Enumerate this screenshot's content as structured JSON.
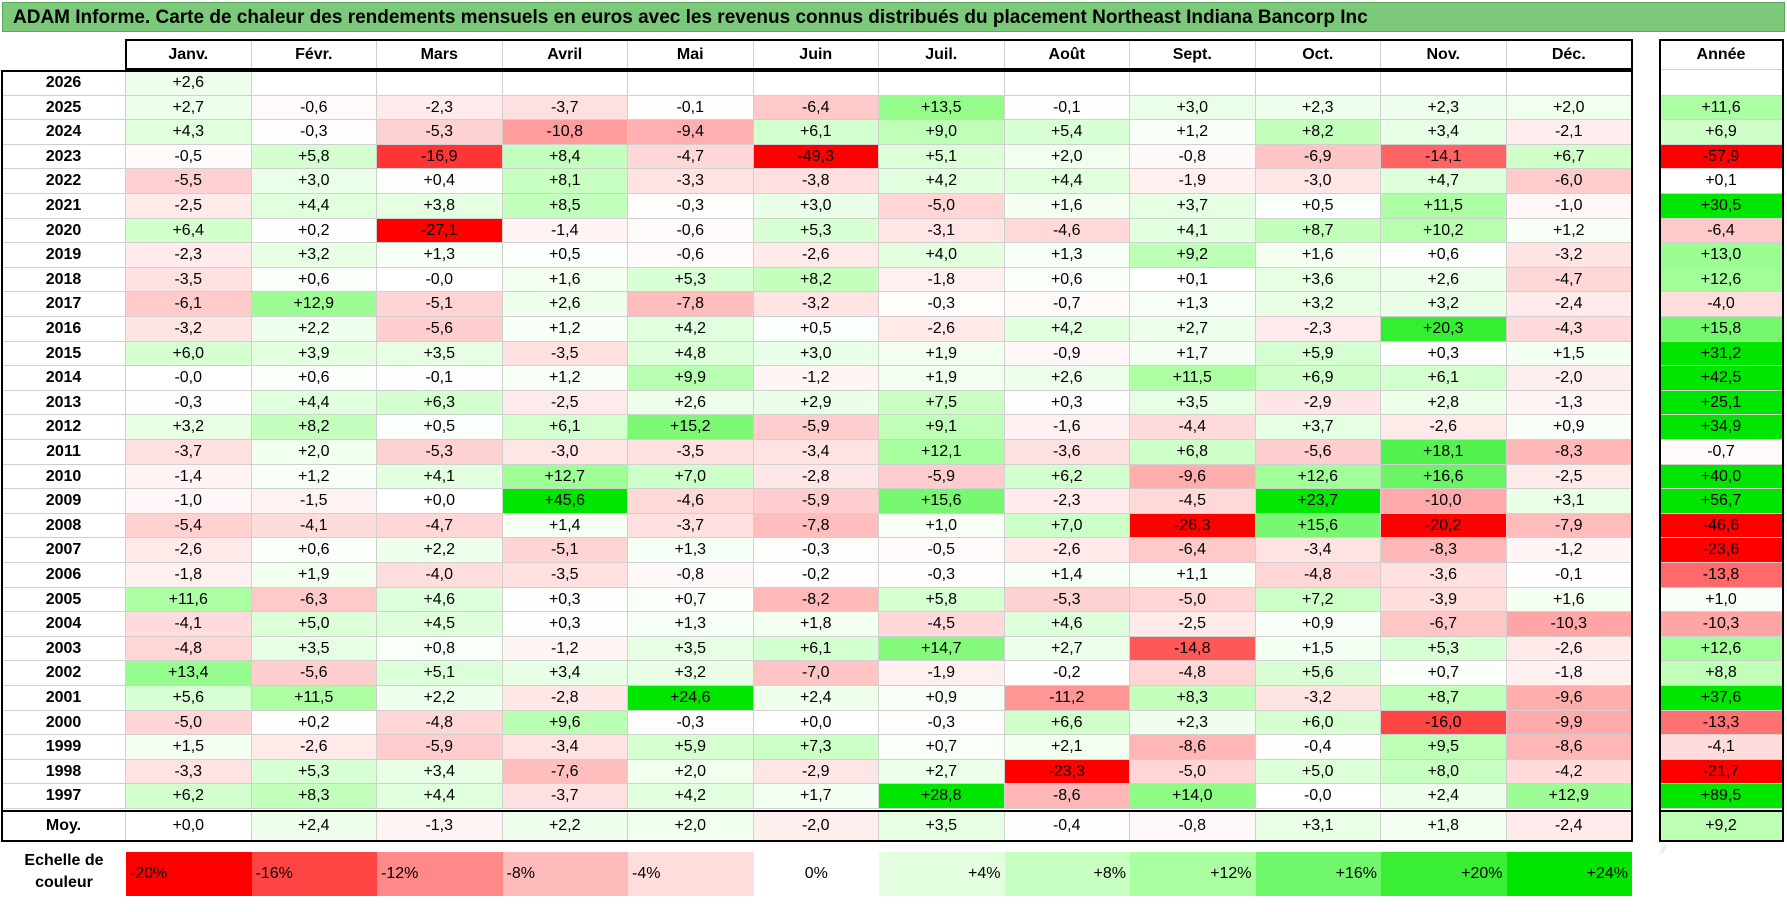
{
  "title": "ADAM Informe. Carte de chaleur des rendements mensuels en euros avec les revenus connus distribués du placement Northeast Indiana Bancorp Inc",
  "chart_data": {
    "type": "heatmap",
    "title": "ADAM Informe. Carte de chaleur des rendements mensuels en euros avec les revenus connus distribués du placement Northeast Indiana Bancorp Inc",
    "columns": [
      "Janv.",
      "Févr.",
      "Mars",
      "Avril",
      "Mai",
      "Juin",
      "Juil.",
      "Août",
      "Sept.",
      "Oct.",
      "Nov.",
      "Déc."
    ],
    "year_header": "Année",
    "rows": [
      {
        "year": "2026",
        "values": [
          2.6,
          null,
          null,
          null,
          null,
          null,
          null,
          null,
          null,
          null,
          null,
          null
        ],
        "annual": null
      },
      {
        "year": "2025",
        "values": [
          2.7,
          -0.6,
          -2.3,
          -3.7,
          -0.1,
          -6.4,
          13.5,
          -0.1,
          3.0,
          2.3,
          2.3,
          2.0
        ],
        "annual": 11.6
      },
      {
        "year": "2024",
        "values": [
          4.3,
          -0.3,
          -5.3,
          -10.8,
          -9.4,
          6.1,
          9.0,
          5.4,
          1.2,
          8.2,
          3.4,
          -2.1
        ],
        "annual": 6.9
      },
      {
        "year": "2023",
        "values": [
          -0.5,
          5.8,
          -16.9,
          8.4,
          -4.7,
          -49.3,
          5.1,
          2.0,
          -0.8,
          -6.9,
          -14.1,
          6.7
        ],
        "annual": -57.9
      },
      {
        "year": "2022",
        "values": [
          -5.5,
          3.0,
          0.4,
          8.1,
          -3.3,
          -3.8,
          4.2,
          4.4,
          -1.9,
          -3.0,
          4.7,
          -6.0
        ],
        "annual": 0.1
      },
      {
        "year": "2021",
        "values": [
          -2.5,
          4.4,
          3.8,
          8.5,
          -0.3,
          3.0,
          -5.0,
          1.6,
          3.7,
          0.5,
          11.5,
          -1.0
        ],
        "annual": 30.5
      },
      {
        "year": "2020",
        "values": [
          6.4,
          0.2,
          -27.1,
          -1.4,
          -0.6,
          5.3,
          -3.1,
          -4.6,
          4.1,
          8.7,
          10.2,
          1.2
        ],
        "annual": -6.4
      },
      {
        "year": "2019",
        "values": [
          -2.3,
          3.2,
          1.3,
          0.5,
          -0.6,
          -2.6,
          4.0,
          1.3,
          9.2,
          1.6,
          0.6,
          -3.2
        ],
        "annual": 13.0
      },
      {
        "year": "2018",
        "values": [
          -3.5,
          0.6,
          -0.0,
          1.6,
          5.3,
          8.2,
          -1.8,
          0.6,
          0.1,
          3.6,
          2.6,
          -4.7
        ],
        "annual": 12.6
      },
      {
        "year": "2017",
        "values": [
          -6.1,
          12.9,
          -5.1,
          2.6,
          -7.8,
          -3.2,
          -0.3,
          -0.7,
          1.3,
          3.2,
          3.2,
          -2.4
        ],
        "annual": -4.0
      },
      {
        "year": "2016",
        "values": [
          -3.2,
          2.2,
          -5.6,
          1.2,
          4.2,
          0.5,
          -2.6,
          4.2,
          2.7,
          -2.3,
          20.3,
          -4.3
        ],
        "annual": 15.8
      },
      {
        "year": "2015",
        "values": [
          6.0,
          3.9,
          3.5,
          -3.5,
          4.8,
          3.0,
          1.9,
          -0.9,
          1.7,
          5.9,
          0.3,
          1.5
        ],
        "annual": 31.2
      },
      {
        "year": "2014",
        "values": [
          -0.0,
          0.6,
          -0.1,
          1.2,
          9.9,
          -1.2,
          1.9,
          2.6,
          11.5,
          6.9,
          6.1,
          -2.0
        ],
        "annual": 42.5
      },
      {
        "year": "2013",
        "values": [
          -0.3,
          4.4,
          6.3,
          -2.5,
          2.6,
          2.9,
          7.5,
          0.3,
          3.5,
          -2.9,
          2.8,
          -1.3
        ],
        "annual": 25.1
      },
      {
        "year": "2012",
        "values": [
          3.2,
          8.2,
          0.5,
          6.1,
          15.2,
          -5.9,
          9.1,
          -1.6,
          -4.4,
          3.7,
          -2.6,
          0.9
        ],
        "annual": 34.9
      },
      {
        "year": "2011",
        "values": [
          -3.7,
          2.0,
          -5.3,
          -3.0,
          -3.5,
          -3.4,
          12.1,
          -3.6,
          6.8,
          -5.6,
          18.1,
          -8.3
        ],
        "annual": -0.7
      },
      {
        "year": "2010",
        "values": [
          -1.4,
          1.2,
          4.1,
          12.7,
          7.0,
          -2.8,
          -5.9,
          6.2,
          -9.6,
          12.6,
          16.6,
          -2.5
        ],
        "annual": 40.0
      },
      {
        "year": "2009",
        "values": [
          -1.0,
          -1.5,
          0.0,
          45.6,
          -4.6,
          -5.9,
          15.6,
          -2.3,
          -4.5,
          23.7,
          -10.0,
          3.1
        ],
        "annual": 56.7
      },
      {
        "year": "2008",
        "values": [
          -5.4,
          -4.1,
          -4.7,
          1.4,
          -3.7,
          -7.8,
          1.0,
          7.0,
          -26.3,
          15.6,
          -20.2,
          -7.9
        ],
        "annual": -46.6
      },
      {
        "year": "2007",
        "values": [
          -2.6,
          0.6,
          2.2,
          -5.1,
          1.3,
          -0.3,
          -0.5,
          -2.6,
          -6.4,
          -3.4,
          -8.3,
          -1.2
        ],
        "annual": -23.6
      },
      {
        "year": "2006",
        "values": [
          -1.8,
          1.9,
          -4.0,
          -3.5,
          -0.8,
          -0.2,
          -0.3,
          1.4,
          1.1,
          -4.8,
          -3.6,
          -0.1
        ],
        "annual": -13.8
      },
      {
        "year": "2005",
        "values": [
          11.6,
          -6.3,
          4.6,
          0.3,
          0.7,
          -8.2,
          5.8,
          -5.3,
          -5.0,
          7.2,
          -3.9,
          1.6
        ],
        "annual": 1.0
      },
      {
        "year": "2004",
        "values": [
          -4.1,
          5.0,
          4.5,
          0.3,
          1.3,
          1.8,
          -4.5,
          4.6,
          -2.5,
          0.9,
          -6.7,
          -10.3
        ],
        "annual": -10.3
      },
      {
        "year": "2003",
        "values": [
          -4.8,
          3.5,
          0.8,
          -1.2,
          3.5,
          6.1,
          14.7,
          2.7,
          -14.8,
          1.5,
          5.3,
          -2.6
        ],
        "annual": 12.6
      },
      {
        "year": "2002",
        "values": [
          13.4,
          -5.6,
          5.1,
          3.4,
          3.2,
          -7.0,
          -1.9,
          -0.2,
          -4.8,
          5.6,
          0.7,
          -1.8
        ],
        "annual": 8.8
      },
      {
        "year": "2001",
        "values": [
          5.6,
          11.5,
          2.2,
          -2.8,
          24.6,
          2.4,
          0.9,
          -11.2,
          8.3,
          -3.2,
          8.7,
          -9.6
        ],
        "annual": 37.6
      },
      {
        "year": "2000",
        "values": [
          -5.0,
          0.2,
          -4.8,
          9.6,
          -0.3,
          0.0,
          -0.3,
          6.6,
          2.3,
          6.0,
          -16.0,
          -9.9
        ],
        "annual": -13.3
      },
      {
        "year": "1999",
        "values": [
          1.5,
          -2.6,
          -5.9,
          -3.4,
          5.9,
          7.3,
          0.7,
          2.1,
          -8.6,
          -0.4,
          9.5,
          -8.6
        ],
        "annual": -4.1
      },
      {
        "year": "1998",
        "values": [
          -3.3,
          5.3,
          3.4,
          -7.6,
          2.0,
          -2.9,
          2.7,
          -23.3,
          -5.0,
          5.0,
          8.0,
          -4.2
        ],
        "annual": -21.7
      },
      {
        "year": "1997",
        "values": [
          6.2,
          8.3,
          4.4,
          -3.7,
          4.2,
          1.7,
          28.8,
          -8.6,
          14.0,
          -0.0,
          2.4,
          12.9
        ],
        "annual": 89.5
      }
    ],
    "average": {
      "label": "Moy.",
      "values": [
        0.0,
        2.4,
        -1.3,
        2.2,
        2.0,
        -2.0,
        3.5,
        -0.4,
        -0.8,
        3.1,
        1.8,
        -2.4
      ],
      "annual": 9.2
    },
    "scale": {
      "label": "Echelle de couleur",
      "stops": [
        {
          "label": "-20%",
          "value": -20
        },
        {
          "label": "-16%",
          "value": -16
        },
        {
          "label": "-12%",
          "value": -12
        },
        {
          "label": "-8%",
          "value": -8
        },
        {
          "label": "-4%",
          "value": -4
        },
        {
          "label": "0%",
          "value": 0
        },
        {
          "label": "+4%",
          "value": 4
        },
        {
          "label": "+8%",
          "value": 8
        },
        {
          "label": "+12%",
          "value": 12
        },
        {
          "label": "+16%",
          "value": 16
        },
        {
          "label": "+20%",
          "value": 20
        },
        {
          "label": "+24%",
          "value": 24
        }
      ]
    },
    "colors": {
      "negative_max": "#ff0000",
      "neutral": "#ffffff",
      "positive_max": "#00ee00",
      "title_bar": "#7cc97b"
    }
  }
}
